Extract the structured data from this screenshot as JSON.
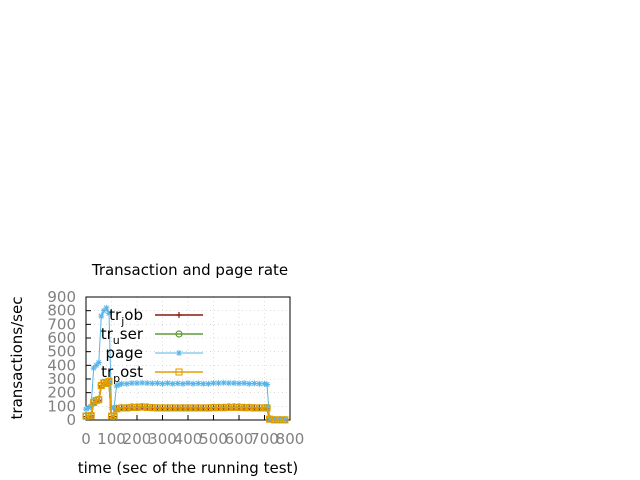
{
  "chart_data": {
    "type": "line",
    "title": "Transaction and page rate",
    "xlabel": "time (sec of the running test)",
    "ylabel": "transactions/sec",
    "xlim": [
      0,
      800
    ],
    "ylim": [
      0,
      900
    ],
    "xticks": [
      "0",
      "100",
      "200",
      "300",
      "400",
      "500",
      "600",
      "700",
      "800"
    ],
    "yticks": [
      "0",
      "100",
      "200",
      "300",
      "400",
      "500",
      "600",
      "700",
      "800",
      "900"
    ],
    "grid": true,
    "legend_position": "top-right",
    "series": [
      {
        "name": "tr_job",
        "legend_main": "tr",
        "legend_sub": "j",
        "legend_rest": "ob",
        "color": "#8b1a0e",
        "marker": "plus",
        "x": [
          0,
          10,
          20,
          30,
          40,
          50,
          60,
          70,
          80,
          90,
          100,
          110,
          120,
          140,
          160,
          180,
          200,
          220,
          240,
          260,
          280,
          300,
          320,
          340,
          360,
          380,
          400,
          420,
          440,
          460,
          480,
          500,
          520,
          540,
          560,
          580,
          600,
          620,
          640,
          660,
          680,
          700,
          710,
          720,
          740,
          760,
          780
        ],
        "y": [
          25,
          25,
          30,
          125,
          140,
          145,
          250,
          270,
          265,
          280,
          25,
          25,
          80,
          85,
          85,
          90,
          90,
          92,
          90,
          88,
          85,
          85,
          85,
          85,
          85,
          85,
          85,
          85,
          85,
          85,
          85,
          88,
          88,
          88,
          90,
          90,
          90,
          88,
          88,
          85,
          85,
          85,
          85,
          5,
          0,
          0,
          0
        ]
      },
      {
        "name": "tr_user",
        "legend_main": "tr",
        "legend_sub": "u",
        "legend_rest": "ser",
        "color": "#5e9c36",
        "marker": "circle",
        "x": [
          0,
          10,
          20,
          30,
          40,
          50,
          60,
          70,
          80,
          90,
          100,
          110,
          120,
          140,
          160,
          180,
          200,
          220,
          240,
          260,
          280,
          300,
          320,
          340,
          360,
          380,
          400,
          420,
          440,
          460,
          480,
          500,
          520,
          540,
          560,
          580,
          600,
          620,
          640,
          660,
          680,
          700,
          710,
          720,
          740,
          760,
          780
        ],
        "y": [
          30,
          30,
          35,
          130,
          145,
          150,
          255,
          275,
          270,
          285,
          30,
          30,
          85,
          90,
          90,
          95,
          95,
          97,
          95,
          92,
          90,
          90,
          90,
          90,
          90,
          90,
          90,
          90,
          90,
          90,
          90,
          93,
          93,
          93,
          95,
          95,
          95,
          93,
          93,
          90,
          90,
          90,
          90,
          8,
          2,
          2,
          2
        ]
      },
      {
        "name": "page",
        "legend_main": "page",
        "legend_sub": "",
        "legend_rest": "",
        "color": "#56b4e9",
        "marker": "star",
        "x": [
          0,
          10,
          20,
          30,
          40,
          50,
          60,
          70,
          80,
          90,
          100,
          110,
          120,
          130,
          140,
          160,
          180,
          200,
          220,
          240,
          260,
          280,
          300,
          320,
          340,
          360,
          380,
          400,
          420,
          440,
          460,
          480,
          500,
          520,
          540,
          560,
          580,
          600,
          620,
          640,
          660,
          680,
          700,
          710,
          720,
          740,
          760,
          780
        ],
        "y": [
          80,
          90,
          100,
          380,
          400,
          420,
          760,
          800,
          820,
          780,
          90,
          90,
          250,
          260,
          265,
          265,
          270,
          270,
          272,
          270,
          268,
          270,
          265,
          270,
          265,
          268,
          265,
          270,
          265,
          268,
          265,
          265,
          270,
          270,
          272,
          270,
          270,
          268,
          270,
          265,
          268,
          265,
          265,
          260,
          10,
          5,
          5,
          5
        ]
      },
      {
        "name": "tr_post",
        "legend_main": "tr",
        "legend_sub": "p",
        "legend_rest": "ost",
        "color": "#e69f00",
        "marker": "square",
        "x": [
          0,
          10,
          20,
          30,
          40,
          50,
          60,
          70,
          80,
          90,
          100,
          110,
          120,
          140,
          160,
          180,
          200,
          220,
          240,
          260,
          280,
          300,
          320,
          340,
          360,
          380,
          400,
          420,
          440,
          460,
          480,
          500,
          520,
          540,
          560,
          580,
          600,
          620,
          640,
          660,
          680,
          700,
          710,
          720,
          740,
          760,
          780
        ],
        "y": [
          28,
          28,
          32,
          128,
          142,
          148,
          252,
          272,
          268,
          282,
          28,
          28,
          82,
          88,
          88,
          92,
          92,
          95,
          92,
          90,
          88,
          88,
          88,
          88,
          88,
          88,
          88,
          88,
          88,
          88,
          88,
          90,
          90,
          90,
          92,
          92,
          92,
          90,
          90,
          88,
          88,
          88,
          88,
          6,
          1,
          1,
          1
        ]
      }
    ]
  }
}
